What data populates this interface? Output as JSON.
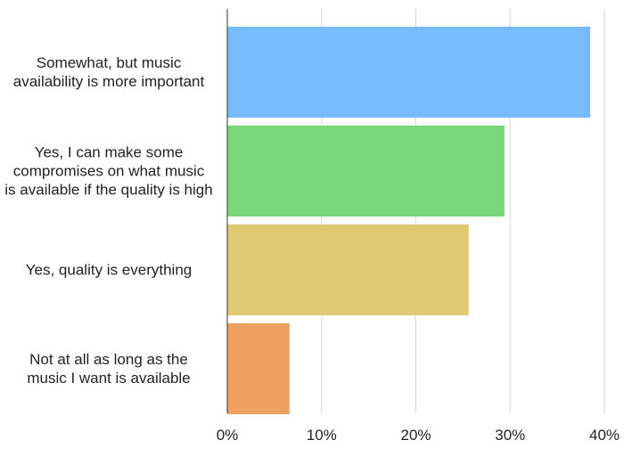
{
  "chart_data": {
    "type": "bar",
    "orientation": "horizontal",
    "title": "",
    "xlabel": "",
    "ylabel": "",
    "categories": [
      [
        "Somewhat, but music",
        "availability is more important"
      ],
      [
        "Yes, I can make some",
        "compromises on what music",
        "is available if the quality is high"
      ],
      [
        "Yes, quality is everything"
      ],
      [
        "Not at all as long as the",
        "music I want is available"
      ]
    ],
    "values": [
      38.5,
      29.4,
      25.6,
      6.6
    ],
    "colors": [
      "#77bbfc",
      "#78d87a",
      "#dfca73",
      "#eea05e"
    ],
    "xlim": [
      0,
      40
    ],
    "xticks": [
      0,
      10,
      20,
      30,
      40
    ],
    "tick_labels": [
      "0%",
      "10%",
      "20%",
      "30%",
      "40%"
    ],
    "grid": true
  }
}
